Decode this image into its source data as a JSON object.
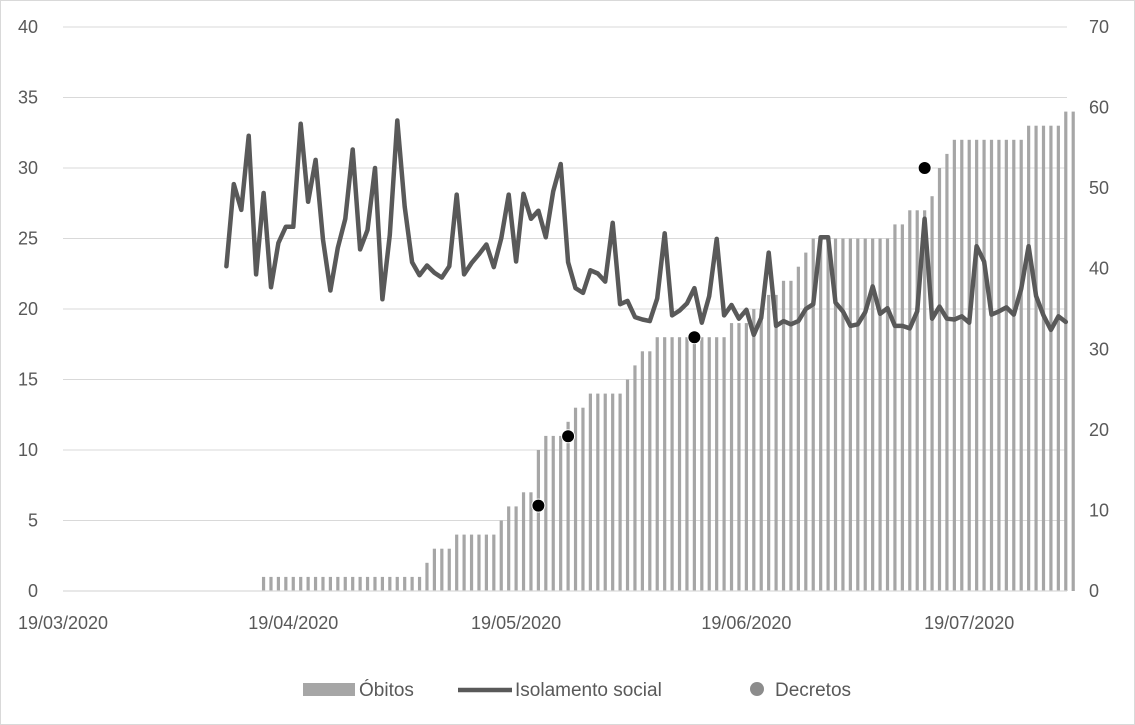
{
  "chart_data": {
    "type": "bar+line",
    "start_date": "2020-03-19",
    "x_tick_labels": [
      "19/03/2020",
      "19/04/2020",
      "19/05/2020",
      "19/06/2020",
      "19/07/2020"
    ],
    "x_tick_dates": [
      "2020-03-19",
      "2020-04-19",
      "2020-05-19",
      "2020-06-19",
      "2020-07-19"
    ],
    "y_left": {
      "ticks": [
        "0",
        "5",
        "10",
        "15",
        "20",
        "25",
        "30",
        "35",
        "40"
      ],
      "ylim": [
        0,
        40
      ]
    },
    "y_right": {
      "ticks": [
        "0",
        "10",
        "20",
        "30",
        "40",
        "50",
        "60",
        "70"
      ],
      "ylim": [
        0,
        70
      ]
    },
    "grid": true,
    "legend_position": "bottom",
    "series": [
      {
        "name": "Óbitos",
        "type": "bar",
        "axis": "left",
        "color": "#a6a6a6",
        "x_start": "2020-04-15",
        "values": [
          1,
          1,
          1,
          1,
          1,
          1,
          1,
          1,
          1,
          1,
          1,
          1,
          1,
          1,
          1,
          1,
          1,
          1,
          1,
          1,
          1,
          1,
          2,
          3,
          3,
          3,
          4,
          4,
          4,
          4,
          4,
          4,
          5,
          6,
          6,
          7,
          7,
          10,
          11,
          11,
          11,
          12,
          13,
          13,
          14,
          14,
          14,
          14,
          14,
          15,
          16,
          17,
          17,
          18,
          18,
          18,
          18,
          18,
          18,
          18,
          18,
          18,
          18,
          19,
          19,
          19,
          20,
          20,
          21,
          21,
          22,
          22,
          23,
          24,
          25,
          25,
          25,
          25,
          25,
          25,
          25,
          25,
          25,
          25,
          25,
          26,
          26,
          27,
          27,
          27,
          28,
          30,
          31,
          32,
          32,
          32,
          32,
          32,
          32,
          32,
          32,
          32,
          32,
          33,
          33,
          33,
          33,
          33,
          34,
          34
        ]
      },
      {
        "name": "Isolamento social",
        "type": "line",
        "axis": "right",
        "color": "#595959",
        "x_start": "2020-04-10",
        "values": [
          40.3,
          50.5,
          47.3,
          56.5,
          39.3,
          49.4,
          37.7,
          43.2,
          45.2,
          45.2,
          58,
          48.3,
          53.5,
          43.6,
          37.3,
          42.6,
          46.2,
          54.8,
          42.4,
          44.8,
          52.5,
          36.2,
          44.2,
          58.4,
          47.7,
          40.8,
          39.2,
          40.4,
          39.5,
          38.9,
          40.3,
          49.2,
          39.3,
          40.7,
          41.8,
          43,
          40.2,
          43.8,
          49.2,
          40.9,
          49.3,
          46.2,
          47.2,
          43.9,
          49.6,
          53,
          40.8,
          37.6,
          37,
          39.8,
          39.4,
          38.4,
          45.7,
          35.6,
          36,
          34,
          33.7,
          33.5,
          36.3,
          44.4,
          34.2,
          34.8,
          35.7,
          37.6,
          33.3,
          36.6,
          43.7,
          34.2,
          35.5,
          33.8,
          34.9,
          31.8,
          33.9,
          42,
          32.9,
          33.5,
          33.1,
          33.5,
          35,
          35.6,
          43.9,
          43.9,
          35.8,
          34.7,
          32.9,
          33.1,
          34.6,
          37.8,
          34.4,
          35.1,
          32.9,
          32.9,
          32.6,
          34.7,
          46.2,
          33.8,
          35.3,
          33.8,
          33.7,
          34.1,
          33.3,
          42.8,
          40.9,
          34.3,
          34.7,
          35.2,
          34.3,
          37.5,
          42.8,
          36.6,
          34.2,
          32.4,
          34.1,
          33.4
        ]
      },
      {
        "name": "Decretos",
        "type": "scatter",
        "axis": "right",
        "color": "#000000",
        "points": [
          {
            "x": "2020-05-22",
            "y": 10.6
          },
          {
            "x": "2020-05-26",
            "y": 19.2
          },
          {
            "x": "2020-06-12",
            "y": 31.5
          },
          {
            "x": "2020-07-13",
            "y": 52.5
          }
        ]
      }
    ]
  }
}
